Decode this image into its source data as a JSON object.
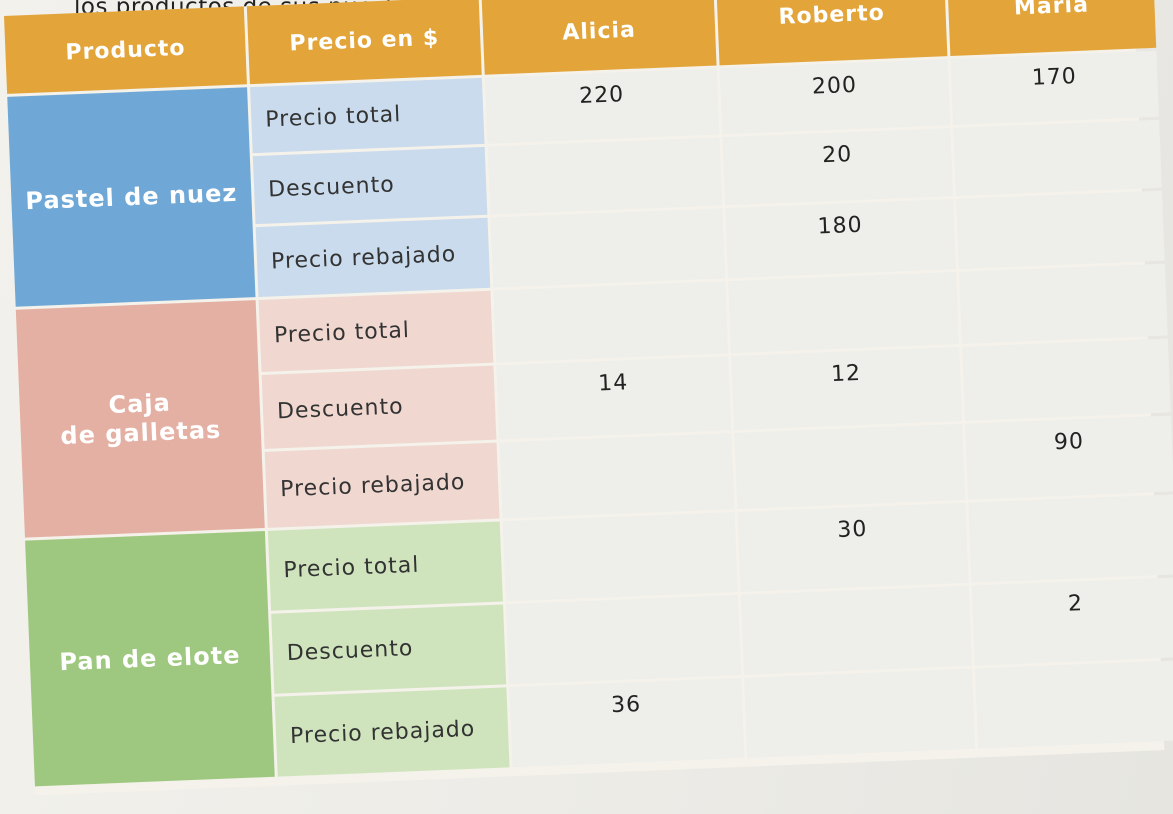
{
  "caption": "los productos de sus puestos con un",
  "headers": {
    "producto": "Producto",
    "precio": "Precio en $",
    "alicia": "Alicia",
    "roberto": "Roberto",
    "maria": "María"
  },
  "products": {
    "pastel": "Pastel de nuez",
    "caja_line1": "Caja",
    "caja_line2": "de galletas",
    "pan": "Pan de elote"
  },
  "labels": {
    "total": "Precio total",
    "descuento": "Descuento",
    "rebajado": "Precio rebajado"
  },
  "values": {
    "pastel_total_alicia": "220",
    "pastel_total_roberto": "200",
    "pastel_total_maria": "170",
    "pastel_descuento_roberto": "20",
    "pastel_rebajado_roberto": "180",
    "caja_descuento_alicia": "14",
    "caja_descuento_roberto": "12",
    "caja_rebajado_maria": "90",
    "pan_total_roberto": "30",
    "pan_descuento_maria": "2",
    "pan_rebajado_alicia": "36"
  }
}
